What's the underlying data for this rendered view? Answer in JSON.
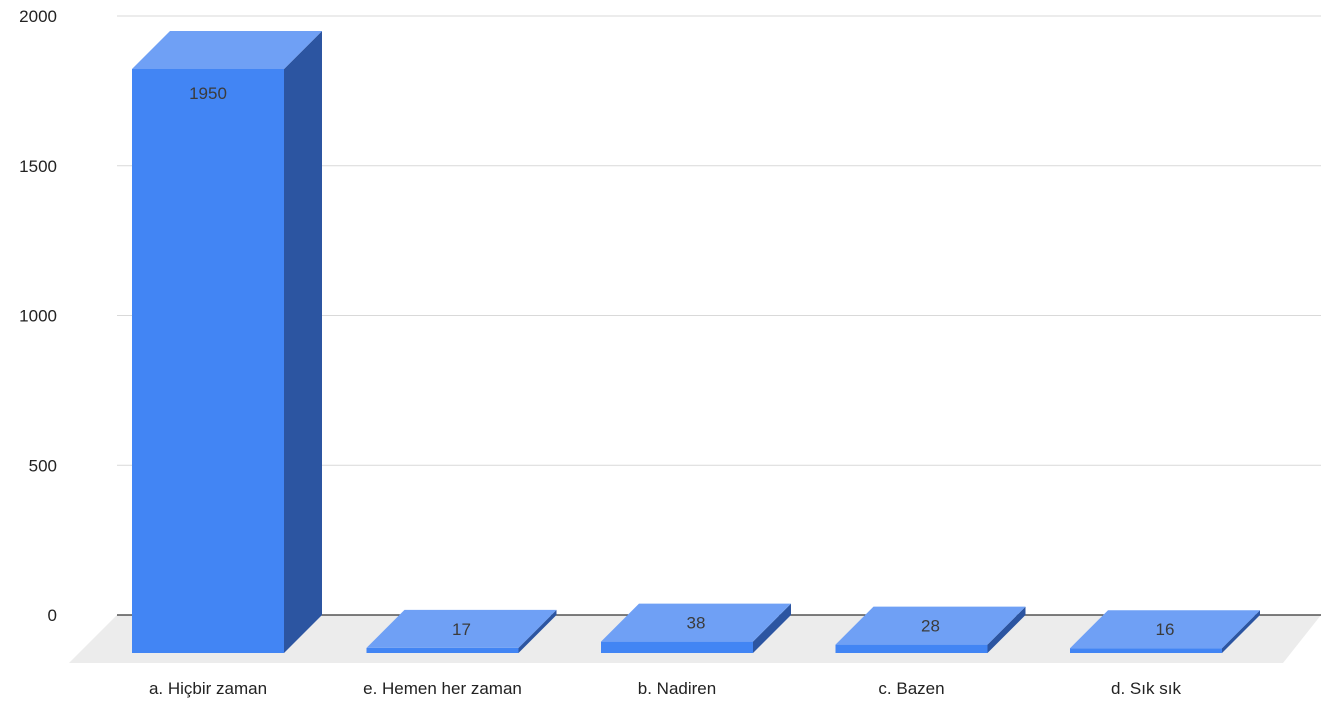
{
  "chart_data": {
    "type": "bar",
    "style": "3d",
    "categories": [
      "a. Hiçbir zaman",
      "e. Hemen her zaman",
      "b. Nadiren",
      "c. Bazen",
      "d. Sık sık"
    ],
    "values": [
      1950,
      17,
      38,
      28,
      16
    ],
    "data_labels": [
      "1950",
      "17",
      "38",
      "28",
      "16"
    ],
    "yticks": [
      "0",
      "500",
      "1000",
      "1500",
      "2000"
    ],
    "ylim": [
      0,
      2000
    ],
    "grid": true,
    "legend": "none",
    "colors": {
      "bar_front": "#4285f4",
      "bar_side": "#2c55a1",
      "bar_top": "#6fa0f5",
      "floor": "#ececec",
      "gridline": "#d9d9d9",
      "baseline": "#333333"
    }
  }
}
